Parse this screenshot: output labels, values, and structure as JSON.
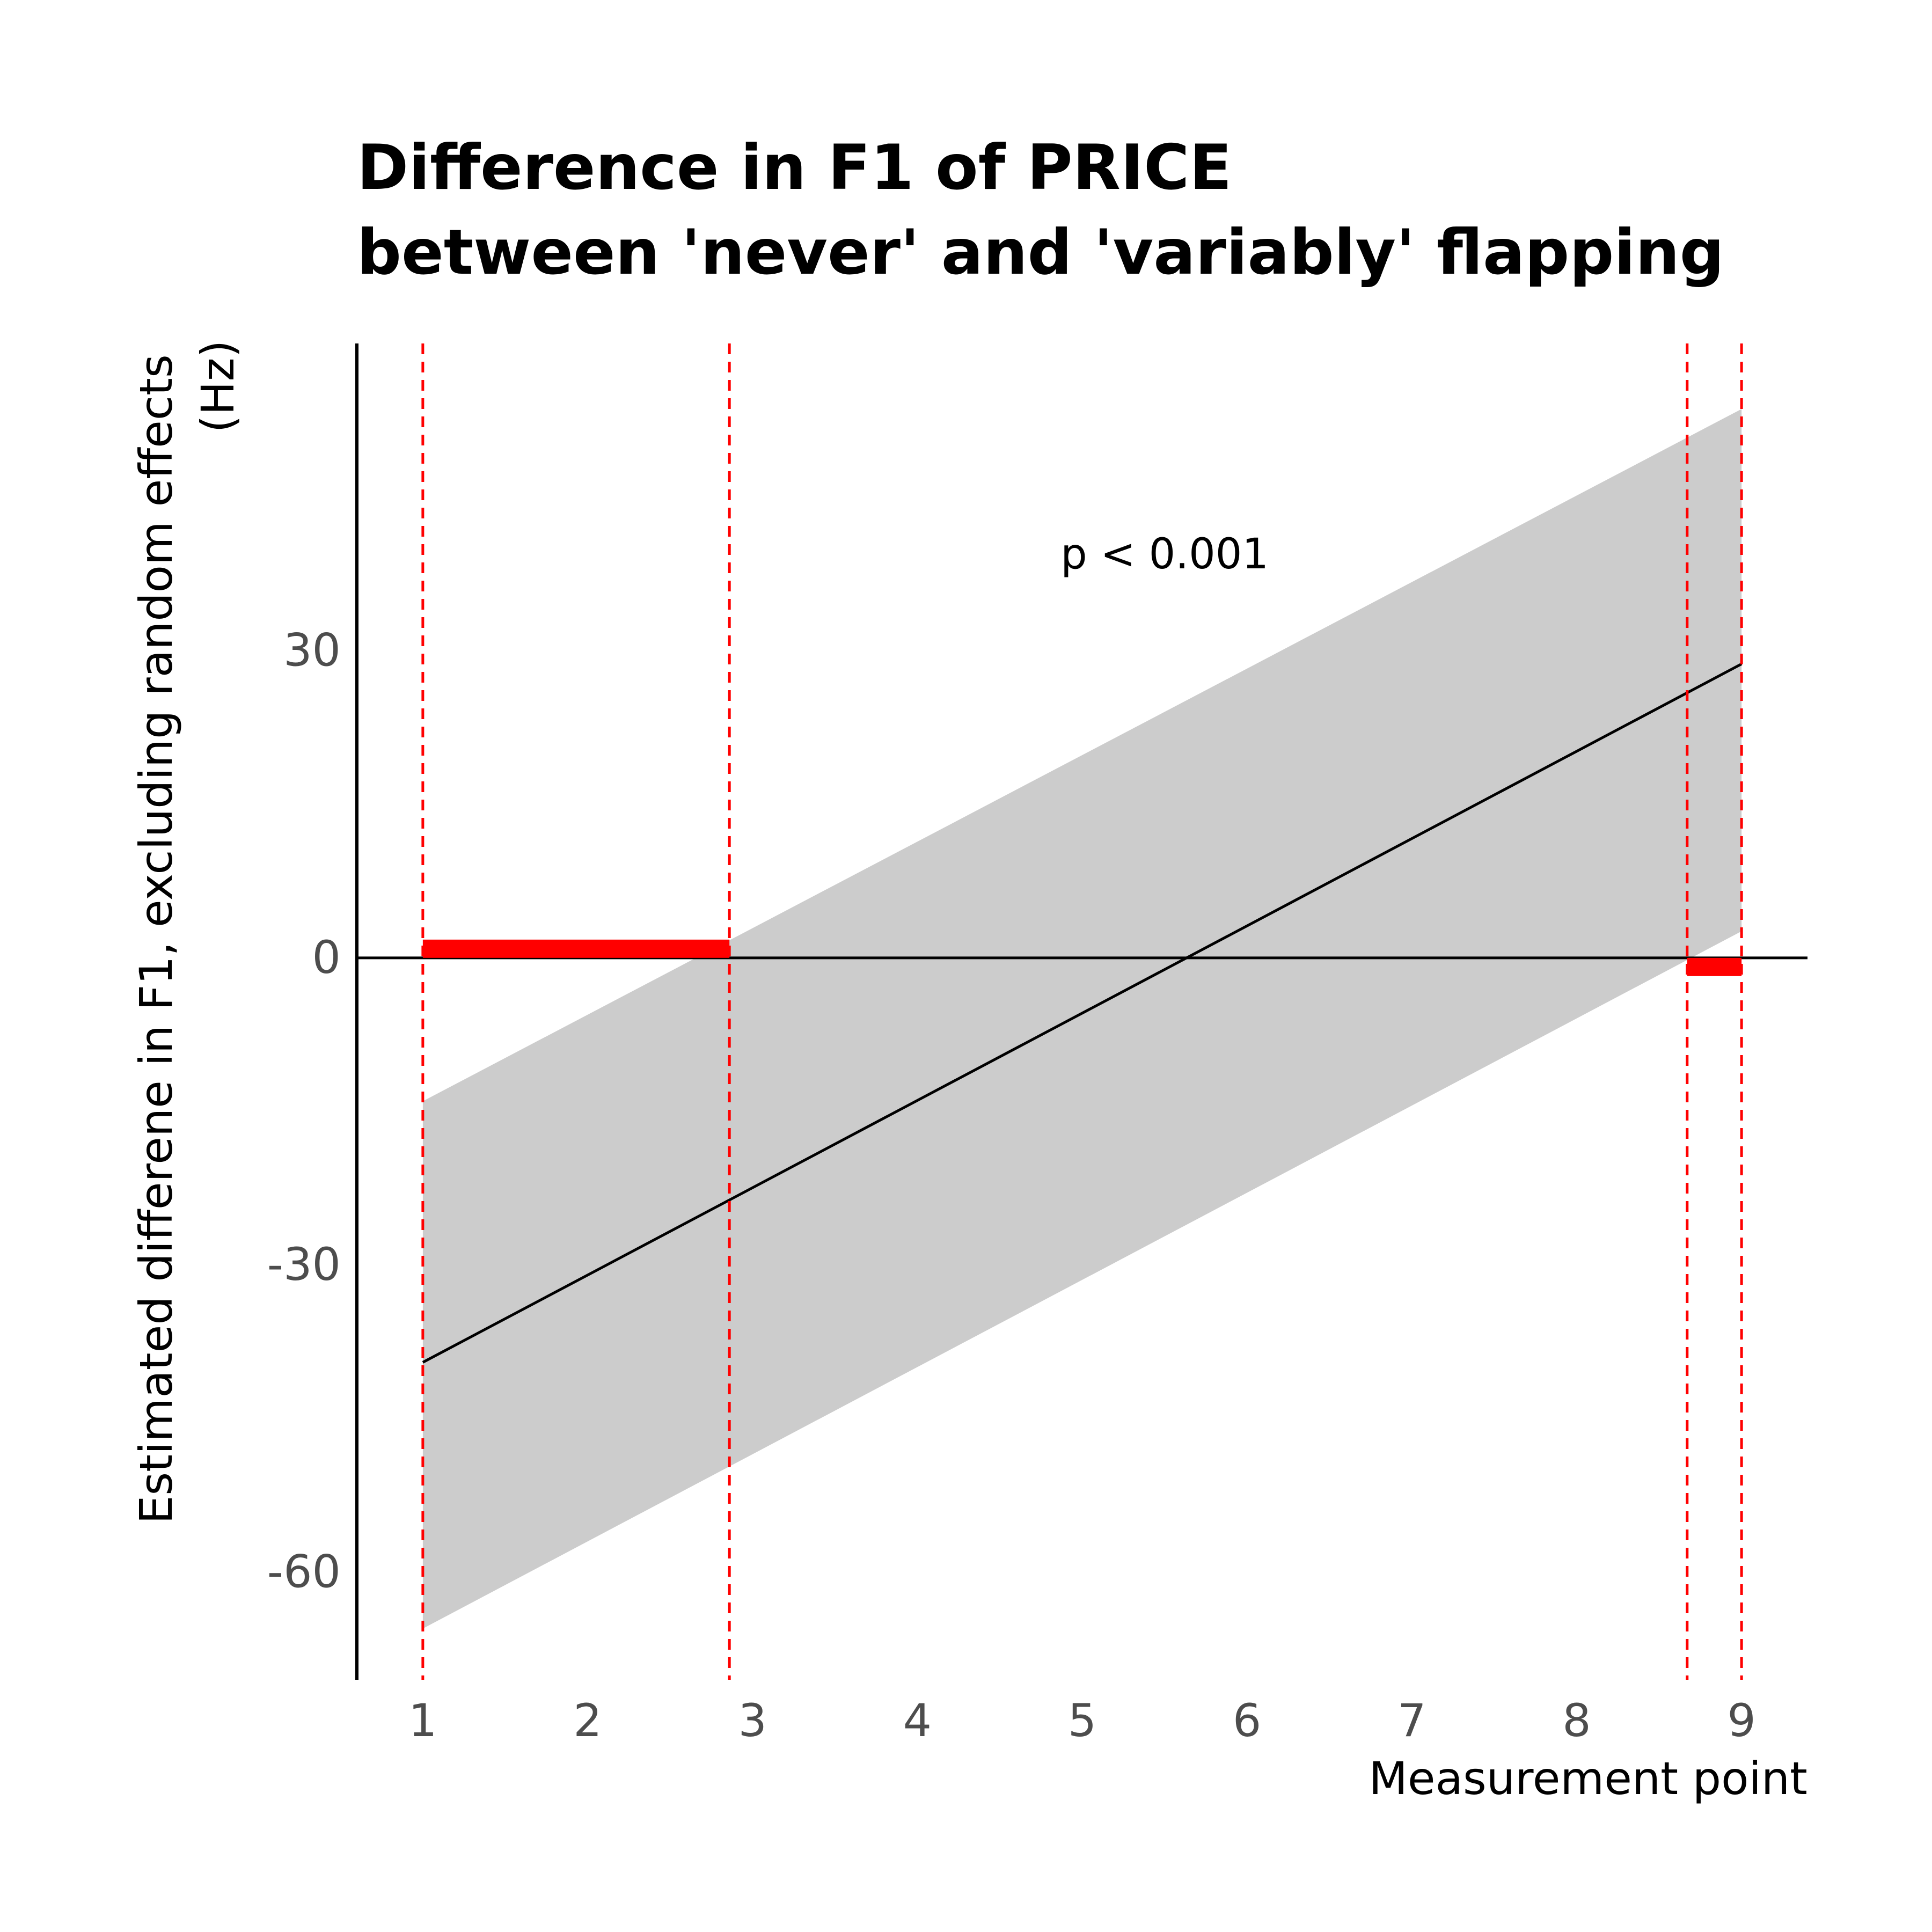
{
  "chart_data": {
    "type": "line",
    "title_lines": [
      "Difference in F1 of PRICE",
      "between 'never' and 'variably' flapping"
    ],
    "xlabel": "Measurement point",
    "ylabel_lines": [
      "Estimated differene in F1, excluding random effects",
      "(Hz)"
    ],
    "x_ticks": [
      1,
      2,
      3,
      4,
      5,
      6,
      7,
      8,
      9
    ],
    "y_ticks": [
      -60,
      -30,
      0,
      30
    ],
    "y_tick_labels": [
      "-60",
      "-30",
      "0",
      "30"
    ],
    "xlim": [
      0.6,
      9.4
    ],
    "ylim": [
      -70.5,
      60
    ],
    "grid": false,
    "series": [
      {
        "x": [
          1,
          9
        ],
        "y": [
          -39.5,
          28.7
        ],
        "ci_lower": [
          -65.5,
          2.6
        ],
        "ci_upper": [
          -14,
          53.6
        ]
      }
    ],
    "significant_intervals": [
      [
        1,
        2.86
      ],
      [
        8.67,
        9
      ]
    ],
    "annotation": "p < 0.001",
    "annotation_position": {
      "x": 5.5,
      "y": 39.5
    },
    "colors": {
      "line": "#000000",
      "ribbon": "#cccccc",
      "significance": "#ff0000",
      "tick_labels": "#4d4d4d"
    }
  }
}
